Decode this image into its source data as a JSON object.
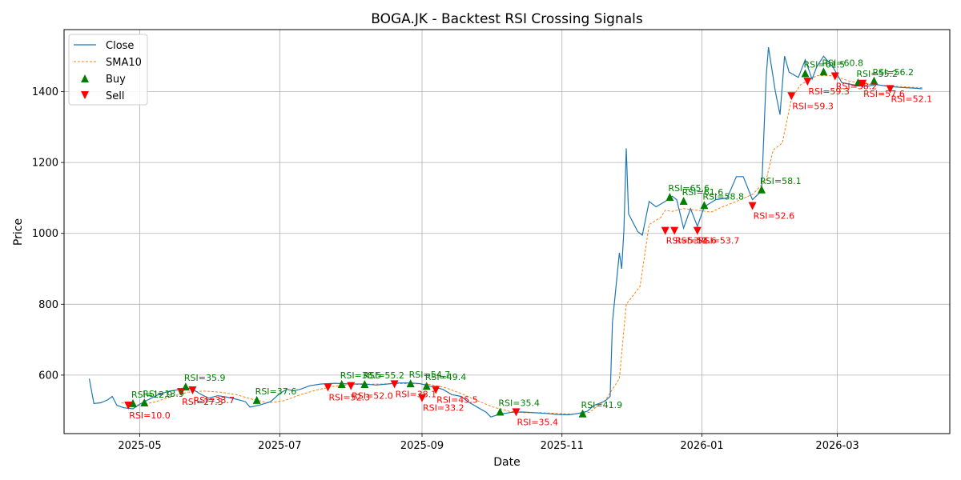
{
  "chart_data": {
    "type": "line",
    "title": "BOGA.JK - Backtest RSI Crossing Signals",
    "xlabel": "Date",
    "ylabel": "Price",
    "xlim": [
      "2025-03-29",
      "2026-04-19"
    ],
    "ylim": [
      435,
      1575
    ],
    "x_ticks": [
      "2025-05-01",
      "2025-07-01",
      "2025-09-01",
      "2025-11-01",
      "2026-01-01",
      "2026-03-01"
    ],
    "x_tick_labels": [
      "2025-05",
      "2025-07",
      "2025-09",
      "2025-11",
      "2026-01",
      "2026-03"
    ],
    "y_ticks": [
      600,
      800,
      1000,
      1200,
      1400
    ],
    "grid": true,
    "legend_position": "top-left",
    "legend": [
      "Close",
      "SMA10",
      "Buy",
      "Sell"
    ],
    "colors": {
      "close": "#1f77b4",
      "sma": "#ff7f0e",
      "buy": "#008000",
      "sell": "#ff0000",
      "buy_text": "#008000",
      "sell_text": "#ff0000"
    },
    "close": [
      [
        "2025-04-09",
        590
      ],
      [
        "2025-04-11",
        520
      ],
      [
        "2025-04-14",
        522
      ],
      [
        "2025-04-17",
        530
      ],
      [
        "2025-04-19",
        540
      ],
      [
        "2025-04-21",
        515
      ],
      [
        "2025-04-24",
        508
      ],
      [
        "2025-04-28",
        505
      ],
      [
        "2025-05-01",
        518
      ],
      [
        "2025-05-03",
        525
      ],
      [
        "2025-05-06",
        535
      ],
      [
        "2025-05-09",
        545
      ],
      [
        "2025-05-14",
        555
      ],
      [
        "2025-05-17",
        558
      ],
      [
        "2025-05-21",
        565
      ],
      [
        "2025-05-24",
        560
      ],
      [
        "2025-05-27",
        548
      ],
      [
        "2025-05-31",
        535
      ],
      [
        "2025-06-04",
        542
      ],
      [
        "2025-06-08",
        538
      ],
      [
        "2025-06-12",
        532
      ],
      [
        "2025-06-16",
        525
      ],
      [
        "2025-06-18",
        510
      ],
      [
        "2025-06-22",
        515
      ],
      [
        "2025-06-27",
        525
      ],
      [
        "2025-07-01",
        548
      ],
      [
        "2025-07-04",
        560
      ],
      [
        "2025-07-07",
        556
      ],
      [
        "2025-07-10",
        560
      ],
      [
        "2025-07-14",
        570
      ],
      [
        "2025-07-19",
        575
      ],
      [
        "2025-07-25",
        577
      ],
      [
        "2025-08-01",
        575
      ],
      [
        "2025-08-07",
        575
      ],
      [
        "2025-08-12",
        572
      ],
      [
        "2025-08-17",
        575
      ],
      [
        "2025-08-22",
        578
      ],
      [
        "2025-08-27",
        578
      ],
      [
        "2025-08-31",
        576
      ],
      [
        "2025-09-05",
        568
      ],
      [
        "2025-09-10",
        560
      ],
      [
        "2025-09-14",
        545
      ],
      [
        "2025-09-18",
        540
      ],
      [
        "2025-09-21",
        525
      ],
      [
        "2025-09-25",
        510
      ],
      [
        "2025-09-29",
        495
      ],
      [
        "2025-10-01",
        482
      ],
      [
        "2025-10-05",
        490
      ],
      [
        "2025-10-10",
        495
      ],
      [
        "2025-10-15",
        496
      ],
      [
        "2025-10-20",
        494
      ],
      [
        "2025-10-25",
        492
      ],
      [
        "2025-10-30",
        489
      ],
      [
        "2025-11-04",
        488
      ],
      [
        "2025-11-08",
        492
      ],
      [
        "2025-11-12",
        498
      ],
      [
        "2025-11-15",
        515
      ],
      [
        "2025-11-18",
        522
      ],
      [
        "2025-11-20",
        528
      ],
      [
        "2025-11-22",
        540
      ],
      [
        "2025-11-23",
        750
      ],
      [
        "2025-11-26",
        945
      ],
      [
        "2025-11-27",
        900
      ],
      [
        "2025-11-28",
        1010
      ],
      [
        "2025-11-29",
        1240
      ],
      [
        "2025-11-30",
        1055
      ],
      [
        "2025-12-04",
        1005
      ],
      [
        "2025-12-06",
        995
      ],
      [
        "2025-12-09",
        1090
      ],
      [
        "2025-12-12",
        1075
      ],
      [
        "2025-12-16",
        1090
      ],
      [
        "2025-12-19",
        1105
      ],
      [
        "2025-12-21",
        1095
      ],
      [
        "2025-12-24",
        1015
      ],
      [
        "2025-12-27",
        1070
      ],
      [
        "2025-12-30",
        1020
      ],
      [
        "2026-01-02",
        1075
      ],
      [
        "2026-01-07",
        1095
      ],
      [
        "2026-01-12",
        1100
      ],
      [
        "2026-01-16",
        1160
      ],
      [
        "2026-01-19",
        1160
      ],
      [
        "2026-01-23",
        1095
      ],
      [
        "2026-01-27",
        1120
      ],
      [
        "2026-01-29",
        1445
      ],
      [
        "2026-01-30",
        1525
      ],
      [
        "2026-02-02",
        1400
      ],
      [
        "2026-02-04",
        1335
      ],
      [
        "2026-02-06",
        1500
      ],
      [
        "2026-02-08",
        1455
      ],
      [
        "2026-02-12",
        1440
      ],
      [
        "2026-02-15",
        1490
      ],
      [
        "2026-02-18",
        1435
      ],
      [
        "2026-02-20",
        1470
      ],
      [
        "2026-02-23",
        1500
      ],
      [
        "2026-02-27",
        1470
      ],
      [
        "2026-03-03",
        1425
      ],
      [
        "2026-03-09",
        1418
      ],
      [
        "2026-03-14",
        1415
      ],
      [
        "2026-03-18",
        1420
      ],
      [
        "2026-03-23",
        1415
      ],
      [
        "2026-03-28",
        1412
      ],
      [
        "2026-04-03",
        1410
      ],
      [
        "2026-04-07",
        1408
      ]
    ],
    "sma10": [
      [
        "2025-04-23",
        522
      ],
      [
        "2025-05-01",
        515
      ],
      [
        "2025-05-08",
        525
      ],
      [
        "2025-05-15",
        540
      ],
      [
        "2025-05-22",
        552
      ],
      [
        "2025-05-29",
        555
      ],
      [
        "2025-06-05",
        552
      ],
      [
        "2025-06-12",
        545
      ],
      [
        "2025-06-19",
        532
      ],
      [
        "2025-06-26",
        522
      ],
      [
        "2025-07-03",
        528
      ],
      [
        "2025-07-10",
        545
      ],
      [
        "2025-07-17",
        558
      ],
      [
        "2025-07-24",
        568
      ],
      [
        "2025-07-31",
        573
      ],
      [
        "2025-08-07",
        574
      ],
      [
        "2025-08-14",
        575
      ],
      [
        "2025-08-21",
        576
      ],
      [
        "2025-08-28",
        576
      ],
      [
        "2025-09-04",
        574
      ],
      [
        "2025-09-11",
        565
      ],
      [
        "2025-09-18",
        548
      ],
      [
        "2025-09-25",
        528
      ],
      [
        "2025-10-02",
        510
      ],
      [
        "2025-10-09",
        498
      ],
      [
        "2025-10-16",
        494
      ],
      [
        "2025-10-23",
        494
      ],
      [
        "2025-10-30",
        492
      ],
      [
        "2025-11-06",
        490
      ],
      [
        "2025-11-13",
        495
      ],
      [
        "2025-11-20",
        530
      ],
      [
        "2025-11-26",
        590
      ],
      [
        "2025-11-29",
        800
      ],
      [
        "2025-12-05",
        850
      ],
      [
        "2025-12-09",
        1025
      ],
      [
        "2025-12-14",
        1045
      ],
      [
        "2025-12-16",
        1065
      ],
      [
        "2025-12-19",
        1062
      ],
      [
        "2025-12-24",
        1070
      ],
      [
        "2025-12-30",
        1065
      ],
      [
        "2026-01-05",
        1060
      ],
      [
        "2026-01-10",
        1075
      ],
      [
        "2026-01-16",
        1090
      ],
      [
        "2026-01-23",
        1110
      ],
      [
        "2026-01-29",
        1150
      ],
      [
        "2026-02-01",
        1235
      ],
      [
        "2026-02-05",
        1255
      ],
      [
        "2026-02-09",
        1380
      ],
      [
        "2026-02-13",
        1420
      ],
      [
        "2026-02-20",
        1445
      ],
      [
        "2026-02-27",
        1445
      ],
      [
        "2026-03-06",
        1430
      ],
      [
        "2026-03-13",
        1422
      ],
      [
        "2026-03-20",
        1418
      ],
      [
        "2026-03-27",
        1415
      ],
      [
        "2026-04-03",
        1412
      ],
      [
        "2026-04-07",
        1411
      ]
    ],
    "buy_signals": [
      {
        "date": "2025-04-28",
        "price": 521,
        "label": "RSI=12.9"
      },
      {
        "date": "2025-05-03",
        "price": 523,
        "label": "RSI=13.9"
      },
      {
        "date": "2025-05-21",
        "price": 568,
        "label": "RSI=35.9"
      },
      {
        "date": "2025-06-21",
        "price": 530,
        "label": "RSI=37.6"
      },
      {
        "date": "2025-07-28",
        "price": 575,
        "label": "RSI=38.5"
      },
      {
        "date": "2025-08-07",
        "price": 575,
        "label": "RSI=55.2"
      },
      {
        "date": "2025-08-27",
        "price": 577,
        "label": "RSI=54.7"
      },
      {
        "date": "2025-09-03",
        "price": 570,
        "label": "RSI=49.4"
      },
      {
        "date": "2025-10-05",
        "price": 497,
        "label": "RSI=35.4"
      },
      {
        "date": "2025-11-10",
        "price": 492,
        "label": "RSI=41.9"
      },
      {
        "date": "2025-12-18",
        "price": 1103,
        "label": "RSI=65.6"
      },
      {
        "date": "2025-12-24",
        "price": 1092,
        "label": "RSI=61.6"
      },
      {
        "date": "2026-01-02",
        "price": 1080,
        "label": "RSI=58.8"
      },
      {
        "date": "2026-01-27",
        "price": 1124,
        "label": "RSI=58.1"
      },
      {
        "date": "2026-02-15",
        "price": 1452,
        "label": "RSI=61.5"
      },
      {
        "date": "2026-02-23",
        "price": 1457,
        "label": "RSI=60.8"
      },
      {
        "date": "2026-03-10",
        "price": 1426,
        "label": "RSI=55.2"
      },
      {
        "date": "2026-03-17",
        "price": 1431,
        "label": "RSI=56.2"
      }
    ],
    "sell_signals": [
      {
        "date": "2025-04-26",
        "price": 514,
        "label": "RSI=10.0"
      },
      {
        "date": "2025-05-19",
        "price": 552,
        "label": "RSI=27.3"
      },
      {
        "date": "2025-05-24",
        "price": 557,
        "label": "RSI=33.7"
      },
      {
        "date": "2025-07-22",
        "price": 565,
        "label": "RSI=52.3"
      },
      {
        "date": "2025-08-01",
        "price": 569,
        "label": "RSI=52.0"
      },
      {
        "date": "2025-08-20",
        "price": 574,
        "label": "RSI=38.1"
      },
      {
        "date": "2025-09-01",
        "price": 535,
        "label": "RSI=33.2"
      },
      {
        "date": "2025-09-07",
        "price": 558,
        "label": "RSI=45.5"
      },
      {
        "date": "2025-10-12",
        "price": 495,
        "label": "RSI=35.4"
      },
      {
        "date": "2025-12-16",
        "price": 1007,
        "label": "RSI=53.1"
      },
      {
        "date": "2025-12-20",
        "price": 1007,
        "label": "RSI=54.6"
      },
      {
        "date": "2025-12-30",
        "price": 1007,
        "label": "RSI=53.7"
      },
      {
        "date": "2026-01-23",
        "price": 1077,
        "label": "RSI=52.6"
      },
      {
        "date": "2026-02-09",
        "price": 1387,
        "label": "RSI=59.3"
      },
      {
        "date": "2026-02-16",
        "price": 1428,
        "label": "RSI=59.3"
      },
      {
        "date": "2026-02-28",
        "price": 1443,
        "label": "RSI=58.2"
      },
      {
        "date": "2026-03-12",
        "price": 1422,
        "label": "RSI=57.6"
      },
      {
        "date": "2026-03-24",
        "price": 1407,
        "label": "RSI=52.1"
      }
    ]
  }
}
